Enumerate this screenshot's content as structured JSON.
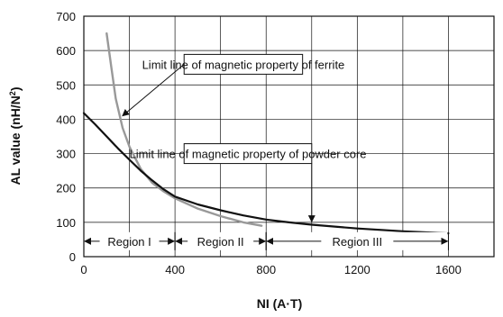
{
  "chart_data": {
    "type": "line",
    "title": "",
    "xlabel": "NI (A·T)",
    "ylabel_main": "AL value (nH/N",
    "ylabel_sup": "2",
    "ylabel_close": ")",
    "xlim": [
      0,
      1800
    ],
    "ylim": [
      0,
      700
    ],
    "x_ticks": [
      0,
      400,
      800,
      1200,
      1600
    ],
    "y_ticks": [
      0,
      100,
      200,
      300,
      400,
      500,
      600,
      700
    ],
    "x_tick_labels": [
      "0",
      "400",
      "800",
      "1200",
      "1600"
    ],
    "y_tick_labels": [
      "0",
      "100",
      "200",
      "300",
      "400",
      "500",
      "600",
      "700"
    ],
    "grid": true,
    "series": [
      {
        "color": "#999999",
        "points": [
          [
            100,
            650
          ],
          [
            120,
            555
          ],
          [
            140,
            460
          ],
          [
            170,
            375
          ],
          [
            200,
            320
          ],
          [
            250,
            255
          ],
          [
            300,
            215
          ],
          [
            350,
            190
          ],
          [
            400,
            170
          ],
          [
            500,
            140
          ],
          [
            600,
            118
          ],
          [
            700,
            100
          ],
          [
            780,
            90
          ]
        ]
      },
      {
        "color": "#111111",
        "points": [
          [
            0,
            418
          ],
          [
            50,
            385
          ],
          [
            100,
            350
          ],
          [
            150,
            315
          ],
          [
            200,
            282
          ],
          [
            250,
            250
          ],
          [
            300,
            222
          ],
          [
            350,
            196
          ],
          [
            400,
            175
          ],
          [
            500,
            152
          ],
          [
            600,
            135
          ],
          [
            700,
            120
          ],
          [
            800,
            108
          ],
          [
            900,
            100
          ],
          [
            1000,
            93
          ],
          [
            1200,
            82
          ],
          [
            1400,
            74
          ],
          [
            1600,
            68
          ]
        ]
      }
    ],
    "annotations": [
      {
        "text": "Limit line of  magnetic property of ferrite",
        "box": [
          440,
          560
        ],
        "box_width": 520,
        "target": [
          170,
          410
        ]
      },
      {
        "text": "Limit line of  magnetic property of powder core",
        "box": [
          440,
          300
        ],
        "box_width": 560,
        "target": [
          1000,
          102
        ]
      }
    ],
    "regions": [
      {
        "label": "Region I",
        "range": [
          0,
          400
        ]
      },
      {
        "label": "Region II",
        "range": [
          400,
          800
        ]
      },
      {
        "label": "Region III",
        "range": [
          800,
          1600
        ]
      }
    ],
    "region_arrow_y": 45
  }
}
